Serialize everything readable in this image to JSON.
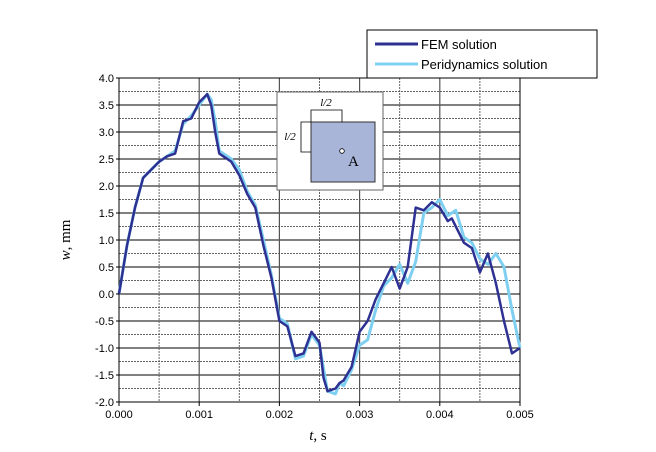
{
  "chart_data": {
    "type": "line",
    "xlabel_var": "t",
    "xlabel_unit": ", s",
    "ylabel_var": "w",
    "ylabel_unit": ", mm",
    "xlim": [
      0,
      0.005
    ],
    "ylim": [
      -2.0,
      4.0
    ],
    "xticks": [
      "0.000",
      "0.001",
      "0.002",
      "0.003",
      "0.004",
      "0.005"
    ],
    "yticks": [
      "-2.0",
      "-1.5",
      "-1.0",
      "-0.5",
      "0.0",
      "0.5",
      "1.0",
      "1.5",
      "2.0",
      "2.5",
      "3.0",
      "3.5",
      "4.0"
    ],
    "grid": true,
    "legend_position": "top-right",
    "series": [
      {
        "name": "FEM solution",
        "color": "#2e3192",
        "x": [
          0,
          0.0001,
          0.0002,
          0.0003,
          0.0004,
          0.0005,
          0.0006,
          0.0007,
          0.0008,
          0.0009,
          0.001,
          0.0011,
          0.00115,
          0.0012,
          0.00125,
          0.0013,
          0.0014,
          0.0015,
          0.0016,
          0.0017,
          0.0018,
          0.0019,
          0.002,
          0.0021,
          0.0022,
          0.0023,
          0.0024,
          0.0025,
          0.00255,
          0.0026,
          0.0027,
          0.00275,
          0.0028,
          0.0029,
          0.003,
          0.0031,
          0.0032,
          0.0033,
          0.0034,
          0.0035,
          0.0036,
          0.0037,
          0.0038,
          0.0039,
          0.004,
          0.0041,
          0.00415,
          0.0043,
          0.0044,
          0.0045,
          0.0046,
          0.0047,
          0.0048,
          0.0049,
          0.005
        ],
        "y": [
          0,
          0.9,
          1.6,
          2.15,
          2.3,
          2.45,
          2.55,
          2.6,
          3.2,
          3.25,
          3.55,
          3.7,
          3.5,
          3.0,
          2.6,
          2.55,
          2.45,
          2.2,
          1.85,
          1.6,
          0.9,
          0.3,
          -0.5,
          -0.6,
          -1.15,
          -1.1,
          -0.7,
          -0.9,
          -1.55,
          -1.8,
          -1.75,
          -1.65,
          -1.6,
          -1.35,
          -0.7,
          -0.5,
          -0.1,
          0.2,
          0.5,
          0.1,
          0.5,
          1.6,
          1.55,
          1.7,
          1.6,
          1.35,
          1.4,
          0.95,
          0.85,
          0.4,
          0.75,
          0.2,
          -0.5,
          -1.1,
          -1.0
        ]
      },
      {
        "name": "Peridynamics solution",
        "color": "#7fd0f0",
        "x": [
          0,
          0.0001,
          0.0002,
          0.0003,
          0.0004,
          0.0005,
          0.0006,
          0.0007,
          0.0008,
          0.0009,
          0.001,
          0.0011,
          0.00115,
          0.0012,
          0.00125,
          0.0013,
          0.0014,
          0.0015,
          0.0016,
          0.0017,
          0.0018,
          0.0019,
          0.002,
          0.0021,
          0.0022,
          0.0023,
          0.0024,
          0.0025,
          0.0026,
          0.0027,
          0.00275,
          0.0028,
          0.0029,
          0.003,
          0.0031,
          0.0032,
          0.0033,
          0.0034,
          0.0035,
          0.0036,
          0.0037,
          0.0038,
          0.0039,
          0.004,
          0.0041,
          0.0042,
          0.0043,
          0.0044,
          0.0045,
          0.0046,
          0.0047,
          0.0048,
          0.0049,
          0.005
        ],
        "y": [
          0,
          0.9,
          1.6,
          2.15,
          2.3,
          2.45,
          2.55,
          2.65,
          3.15,
          3.3,
          3.5,
          3.7,
          3.6,
          3.2,
          2.65,
          2.6,
          2.5,
          2.3,
          1.9,
          1.65,
          1.0,
          0.35,
          -0.45,
          -0.55,
          -1.2,
          -1.15,
          -0.75,
          -0.95,
          -1.8,
          -1.85,
          -1.65,
          -1.7,
          -1.4,
          -0.95,
          -0.85,
          -0.3,
          0.15,
          0.3,
          0.55,
          0.2,
          0.6,
          1.5,
          1.6,
          1.75,
          1.45,
          1.55,
          1.05,
          0.95,
          0.65,
          0.55,
          0.75,
          0.5,
          -0.3,
          -1.0
        ]
      }
    ],
    "inset": {
      "dim_top": "l/2",
      "dim_left": "l/2",
      "point_label": "A",
      "plate_color": "#a9b4d9"
    }
  }
}
